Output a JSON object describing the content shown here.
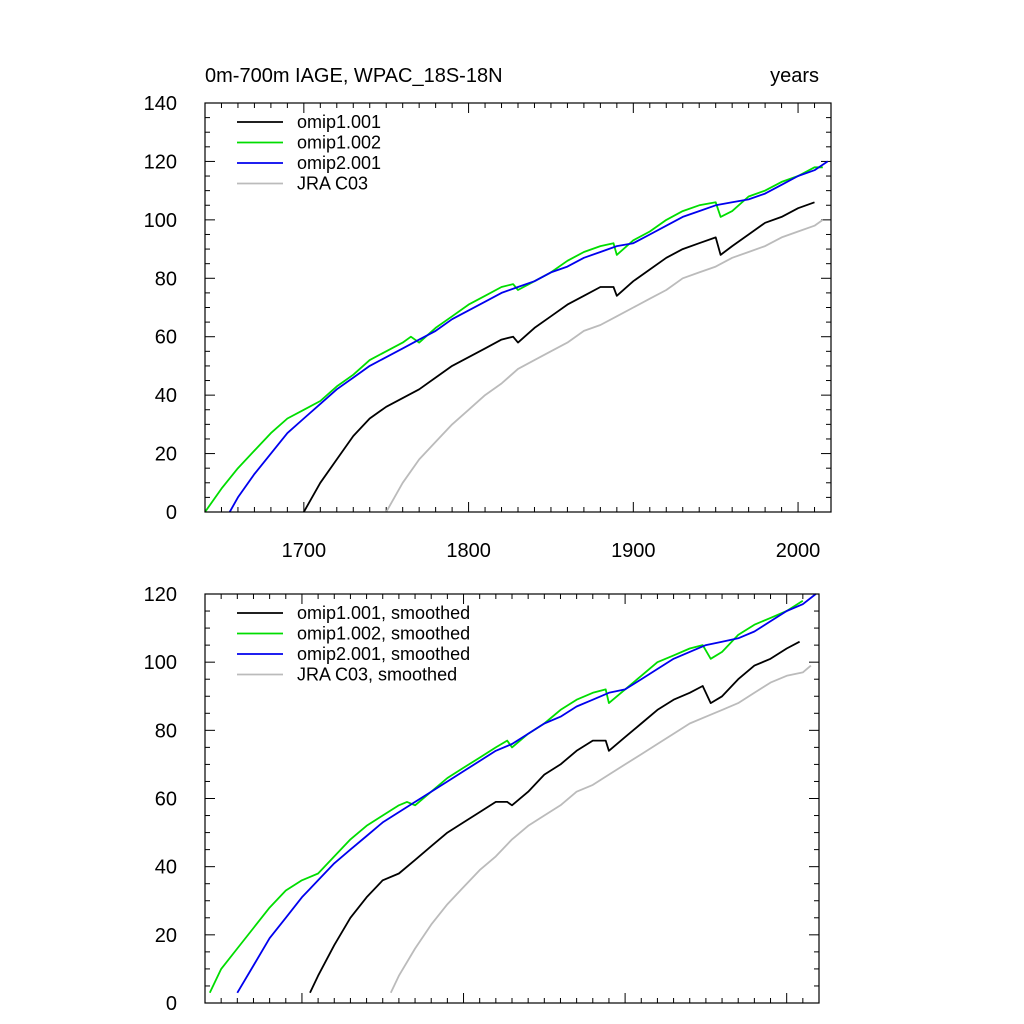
{
  "chart_data": [
    {
      "type": "line",
      "title": "0m-700m IAGE, WPAC_18S-18N",
      "units": "years",
      "xlim": [
        1640,
        2020
      ],
      "ylim": [
        0,
        140
      ],
      "xticks": [
        1700,
        1800,
        1900,
        2000
      ],
      "yticks": [
        0,
        20,
        40,
        60,
        80,
        100,
        120,
        140
      ],
      "grid": false,
      "legend": "top-left",
      "series": [
        {
          "name": "omip1.001",
          "color": "#000000",
          "x": [
            1700,
            1710,
            1720,
            1730,
            1740,
            1750,
            1760,
            1770,
            1780,
            1790,
            1800,
            1810,
            1820,
            1827,
            1830,
            1840,
            1850,
            1860,
            1870,
            1880,
            1888,
            1890,
            1900,
            1910,
            1920,
            1930,
            1940,
            1950,
            1953,
            1960,
            1970,
            1980,
            1990,
            2000,
            2010
          ],
          "y": [
            0,
            10,
            18,
            26,
            32,
            36,
            39,
            42,
            46,
            50,
            53,
            56,
            59,
            60,
            58,
            63,
            67,
            71,
            74,
            77,
            77,
            74,
            79,
            83,
            87,
            90,
            92,
            94,
            88,
            91,
            95,
            99,
            101,
            104,
            106
          ]
        },
        {
          "name": "omip1.002",
          "color": "#00dd00",
          "x": [
            1640,
            1650,
            1660,
            1670,
            1680,
            1690,
            1700,
            1710,
            1720,
            1730,
            1740,
            1750,
            1760,
            1765,
            1770,
            1780,
            1790,
            1800,
            1810,
            1820,
            1827,
            1830,
            1840,
            1850,
            1860,
            1870,
            1880,
            1888,
            1890,
            1900,
            1910,
            1920,
            1930,
            1940,
            1950,
            1953,
            1960,
            1970,
            1980,
            1990,
            2000,
            2010,
            2015
          ],
          "y": [
            0,
            8,
            15,
            21,
            27,
            32,
            35,
            38,
            43,
            47,
            52,
            55,
            58,
            60,
            58,
            63,
            67,
            71,
            74,
            77,
            78,
            76,
            79,
            82,
            86,
            89,
            91,
            92,
            88,
            93,
            96,
            100,
            103,
            105,
            106,
            101,
            103,
            108,
            110,
            113,
            115,
            118,
            118
          ]
        },
        {
          "name": "omip2.001",
          "color": "#0000ee",
          "x": [
            1655,
            1660,
            1670,
            1680,
            1690,
            1700,
            1710,
            1720,
            1730,
            1740,
            1750,
            1760,
            1770,
            1780,
            1790,
            1800,
            1810,
            1820,
            1830,
            1840,
            1850,
            1860,
            1870,
            1880,
            1890,
            1900,
            1910,
            1920,
            1930,
            1940,
            1950,
            1960,
            1970,
            1980,
            1990,
            2000,
            2010,
            2018
          ],
          "y": [
            0,
            5,
            13,
            20,
            27,
            32,
            37,
            42,
            46,
            50,
            53,
            56,
            59,
            62,
            66,
            69,
            72,
            75,
            77,
            79,
            82,
            84,
            87,
            89,
            91,
            92,
            95,
            98,
            101,
            103,
            105,
            106,
            107,
            109,
            112,
            115,
            117,
            120
          ]
        },
        {
          "name": "JRA C03",
          "color": "#bbbbbb",
          "x": [
            1750,
            1760,
            1770,
            1780,
            1790,
            1800,
            1810,
            1820,
            1830,
            1840,
            1850,
            1860,
            1870,
            1880,
            1890,
            1900,
            1910,
            1920,
            1930,
            1940,
            1950,
            1960,
            1970,
            1980,
            1990,
            2000,
            2010,
            2015
          ],
          "y": [
            0,
            10,
            18,
            24,
            30,
            35,
            40,
            44,
            49,
            52,
            55,
            58,
            62,
            64,
            67,
            70,
            73,
            76,
            80,
            82,
            84,
            87,
            89,
            91,
            94,
            96,
            98,
            100
          ]
        }
      ]
    },
    {
      "type": "line",
      "xlim": [
        1640,
        2020
      ],
      "ylim": [
        0,
        120
      ],
      "xticks": [
        1700,
        1800,
        1900,
        2000
      ],
      "yticks": [
        0,
        20,
        40,
        60,
        80,
        100,
        120
      ],
      "grid": false,
      "legend": "top-left",
      "series": [
        {
          "name": "omip1.001, smoothed",
          "color": "#000000",
          "x": [
            1705,
            1710,
            1720,
            1730,
            1740,
            1750,
            1760,
            1770,
            1780,
            1790,
            1800,
            1810,
            1820,
            1827,
            1830,
            1840,
            1850,
            1860,
            1870,
            1880,
            1888,
            1890,
            1900,
            1910,
            1920,
            1930,
            1940,
            1948,
            1953,
            1960,
            1970,
            1980,
            1990,
            2000,
            2008
          ],
          "y": [
            3,
            8,
            17,
            25,
            31,
            36,
            38,
            42,
            46,
            50,
            53,
            56,
            59,
            59,
            58,
            62,
            67,
            70,
            74,
            77,
            77,
            74,
            78,
            82,
            86,
            89,
            91,
            93,
            88,
            90,
            95,
            99,
            101,
            104,
            106
          ]
        },
        {
          "name": "omip1.002, smoothed",
          "color": "#00dd00",
          "x": [
            1643,
            1650,
            1660,
            1670,
            1680,
            1690,
            1700,
            1705,
            1710,
            1720,
            1730,
            1740,
            1750,
            1760,
            1765,
            1770,
            1780,
            1790,
            1800,
            1810,
            1820,
            1827,
            1830,
            1840,
            1850,
            1860,
            1870,
            1880,
            1888,
            1890,
            1900,
            1910,
            1920,
            1930,
            1940,
            1948,
            1953,
            1960,
            1970,
            1980,
            1990,
            2000,
            2010
          ],
          "y": [
            3,
            10,
            16,
            22,
            28,
            33,
            36,
            37,
            38,
            43,
            48,
            52,
            55,
            58,
            59,
            58,
            62,
            66,
            69,
            72,
            75,
            77,
            75,
            79,
            82,
            86,
            89,
            91,
            92,
            88,
            92,
            96,
            100,
            102,
            104,
            105,
            101,
            103,
            108,
            111,
            113,
            115,
            118
          ]
        },
        {
          "name": "omip2.001, smoothed",
          "color": "#0000ee",
          "x": [
            1660,
            1670,
            1680,
            1690,
            1700,
            1710,
            1720,
            1730,
            1740,
            1750,
            1760,
            1770,
            1780,
            1790,
            1800,
            1810,
            1820,
            1830,
            1840,
            1850,
            1860,
            1870,
            1880,
            1890,
            1900,
            1910,
            1920,
            1930,
            1940,
            1950,
            1960,
            1970,
            1980,
            1990,
            2000,
            2010,
            2018
          ],
          "y": [
            3,
            11,
            19,
            25,
            31,
            36,
            41,
            45,
            49,
            53,
            56,
            59,
            62,
            65,
            68,
            71,
            74,
            76,
            79,
            82,
            84,
            87,
            89,
            91,
            92,
            95,
            98,
            101,
            103,
            105,
            106,
            107,
            109,
            112,
            115,
            117,
            120
          ]
        },
        {
          "name": "JRA C03, smoothed",
          "color": "#bbbbbb",
          "x": [
            1755,
            1760,
            1770,
            1780,
            1790,
            1800,
            1810,
            1820,
            1830,
            1840,
            1850,
            1860,
            1870,
            1880,
            1890,
            1900,
            1910,
            1920,
            1930,
            1940,
            1950,
            1960,
            1970,
            1980,
            1990,
            2000,
            2010,
            2015
          ],
          "y": [
            3,
            8,
            16,
            23,
            29,
            34,
            39,
            43,
            48,
            52,
            55,
            58,
            62,
            64,
            67,
            70,
            73,
            76,
            79,
            82,
            84,
            86,
            88,
            91,
            94,
            96,
            97,
            99
          ]
        }
      ]
    }
  ]
}
